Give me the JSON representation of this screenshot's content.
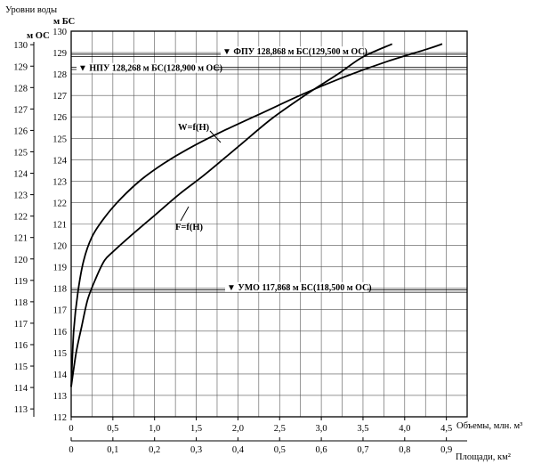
{
  "chart_data": {
    "type": "line",
    "title": "Уровни воды",
    "y_left_unit": "м ОС",
    "y_right_unit": "м БС",
    "y_left_ticks": [
      "113",
      "114",
      "115",
      "116",
      "117",
      "118",
      "119",
      "120",
      "121",
      "122",
      "123",
      "124",
      "125",
      "126",
      "127",
      "128",
      "129",
      "130"
    ],
    "y_right_ticks": [
      "112",
      "113",
      "114",
      "115",
      "116",
      "117",
      "118",
      "119",
      "120",
      "121",
      "122",
      "123",
      "124",
      "125",
      "126",
      "127",
      "128",
      "129",
      "130"
    ],
    "x_volume_label": "Объемы, млн. м³",
    "x_volume_ticks": [
      "0",
      "0,5",
      "1,0",
      "1,5",
      "2,0",
      "2,5",
      "3,0",
      "3,5",
      "4,0",
      "4,5"
    ],
    "x_area_label": "Площади, км²",
    "x_area_ticks": [
      "0",
      "0,1",
      "0,2",
      "0,3",
      "0,4",
      "0,5",
      "0,6",
      "0,7",
      "0,8",
      "0,9"
    ],
    "ylim_bs": [
      112,
      130
    ],
    "xlim_volume": [
      0,
      4.75
    ],
    "grid": true,
    "levels": [
      {
        "label": "▼ ФПУ 128,868 м БС(129,500 м ОС)",
        "value_bs": 128.868
      },
      {
        "label": "▼ НПУ 128,268 м БС(128,900 м ОС)",
        "value_bs": 128.268
      },
      {
        "label": "▼ УМО 117,868 м БС(118,500 м ОС)",
        "value_bs": 117.868
      }
    ],
    "series": [
      {
        "name": "W=f(H)",
        "axis": "volume",
        "x": [
          0,
          0.03,
          0.08,
          0.15,
          0.25,
          0.4,
          0.6,
          0.85,
          1.1,
          1.4,
          1.8,
          2.3,
          2.8,
          3.3,
          3.8,
          4.3,
          4.45
        ],
        "y": [
          113.4,
          116.0,
          117.8,
          119.3,
          120.4,
          121.3,
          122.2,
          123.1,
          123.8,
          124.5,
          125.3,
          126.2,
          127.1,
          127.9,
          128.6,
          129.2,
          129.4
        ]
      },
      {
        "name": "F=f(H)",
        "axis": "area",
        "x": [
          0,
          0.012,
          0.025,
          0.04,
          0.06,
          0.08,
          0.1,
          0.14,
          0.2,
          0.26,
          0.32,
          0.4,
          0.48,
          0.56,
          0.64,
          0.7,
          0.77
        ],
        "y": [
          113.4,
          115.0,
          116.2,
          117.5,
          118.5,
          119.3,
          119.7,
          120.4,
          121.4,
          122.4,
          123.3,
          124.6,
          125.9,
          127.0,
          128.0,
          128.8,
          129.4
        ]
      }
    ]
  }
}
